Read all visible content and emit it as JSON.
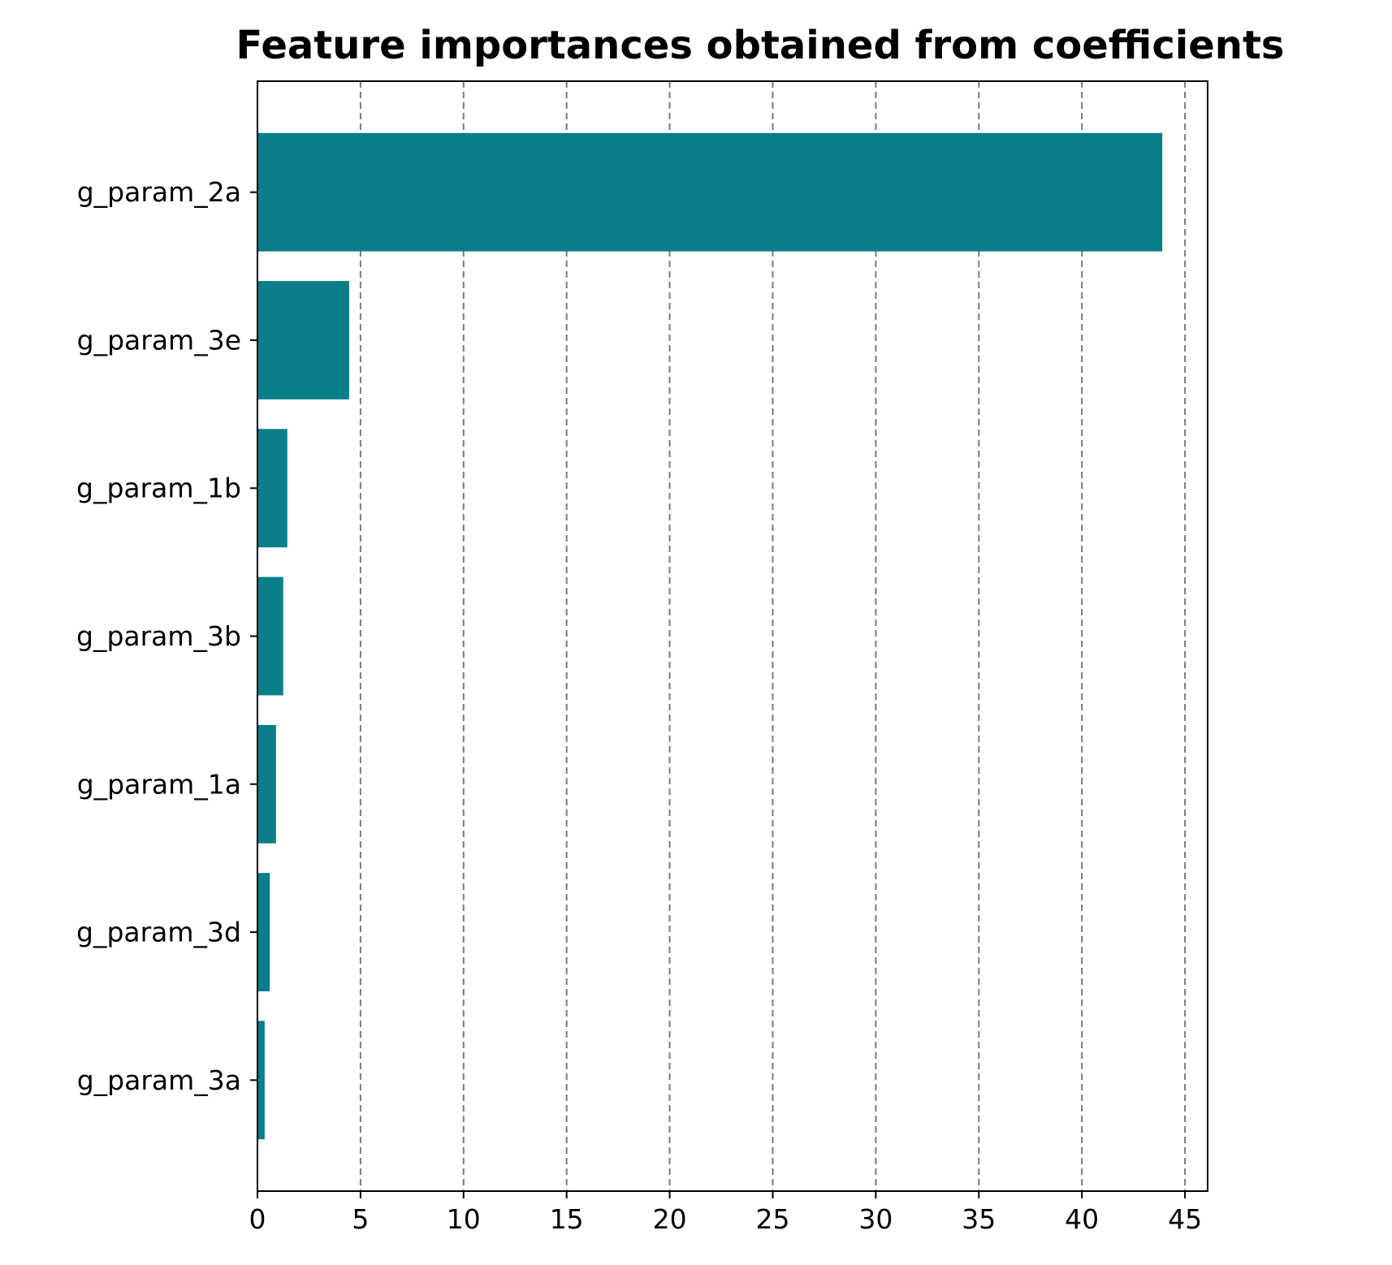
{
  "chart_data": {
    "type": "bar",
    "orientation": "horizontal",
    "title": "Feature importances obtained from coefficients",
    "xlabel": "",
    "ylabel": "",
    "categories": [
      "g_param_2a",
      "g_param_3e",
      "g_param_1b",
      "g_param_3b",
      "g_param_1a",
      "g_param_3d",
      "g_param_3a"
    ],
    "values": [
      43.9,
      4.45,
      1.45,
      1.25,
      0.9,
      0.6,
      0.35
    ],
    "xlim": [
      0,
      46.1
    ],
    "xticks": [
      0,
      5,
      10,
      15,
      20,
      25,
      30,
      35,
      40,
      45
    ],
    "grid": "x-axis dashed",
    "bar_color": "#0a7e8a",
    "grid_color": "#7a7a7a"
  }
}
